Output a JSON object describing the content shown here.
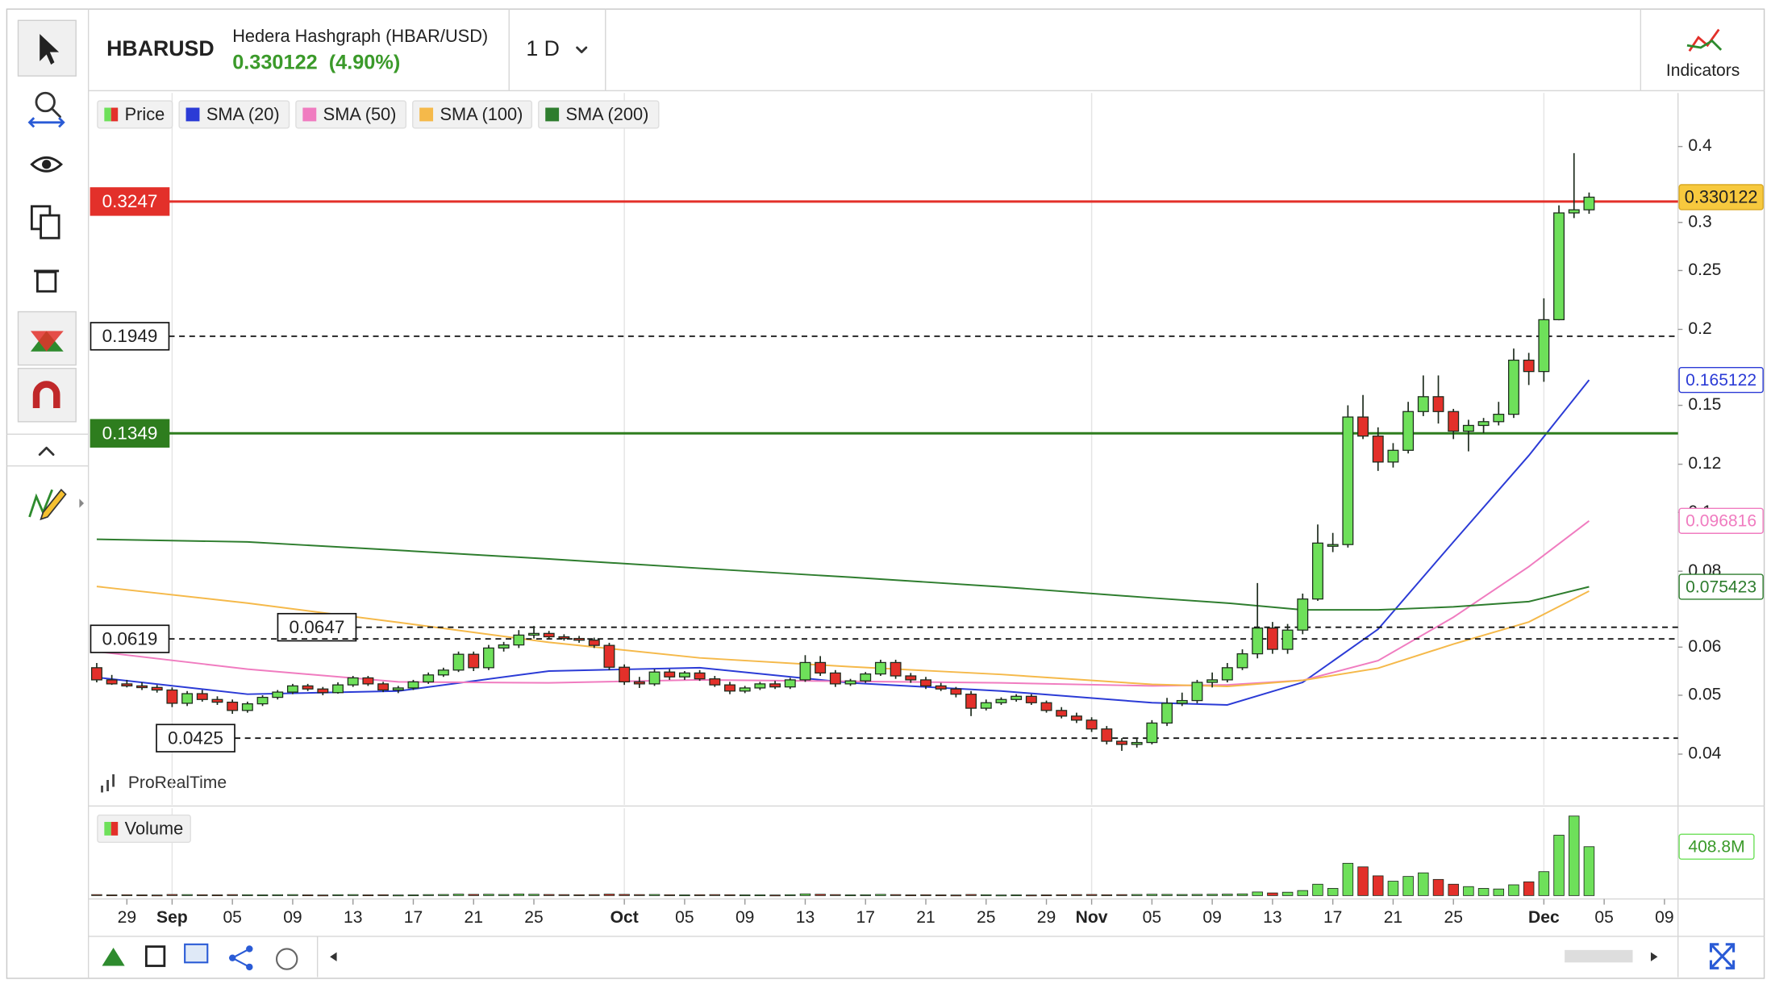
{
  "header": {
    "symbol": "HBARUSD",
    "name": "Hedera Hashgraph (HBAR/USD)",
    "change": "(4.90%)",
    "timeframe": "1 D",
    "indicators_button": "Indicators"
  },
  "watermark": "ProRealTime",
  "chart_data": {
    "type": "candlestick",
    "yscale": "log",
    "ylim": [
      0.033,
      0.49
    ],
    "yticks": [
      0.04,
      0.05,
      0.06,
      0.08,
      0.1,
      0.12,
      0.15,
      0.2,
      0.25,
      0.3,
      0.4
    ],
    "xlim": [
      -0.4,
      104.9
    ],
    "xticks": [
      {
        "value": 2,
        "label": "29"
      },
      {
        "value": 5,
        "label": "Sep"
      },
      {
        "value": 9,
        "label": "05"
      },
      {
        "value": 13,
        "label": "09"
      },
      {
        "value": 17,
        "label": "13"
      },
      {
        "value": 21,
        "label": "17"
      },
      {
        "value": 25,
        "label": "21"
      },
      {
        "value": 29,
        "label": "25"
      },
      {
        "value": 35,
        "label": "Oct"
      },
      {
        "value": 39,
        "label": "05"
      },
      {
        "value": 43,
        "label": "09"
      },
      {
        "value": 47,
        "label": "13"
      },
      {
        "value": 51,
        "label": "17"
      },
      {
        "value": 55,
        "label": "21"
      },
      {
        "value": 59,
        "label": "25"
      },
      {
        "value": 63,
        "label": "29"
      },
      {
        "value": 66,
        "label": "Nov"
      },
      {
        "value": 70,
        "label": "05"
      },
      {
        "value": 74,
        "label": "09"
      },
      {
        "value": 78,
        "label": "13"
      },
      {
        "value": 82,
        "label": "17"
      },
      {
        "value": 86,
        "label": "21"
      },
      {
        "value": 90,
        "label": "25"
      },
      {
        "value": 96,
        "label": "Dec"
      },
      {
        "value": 100,
        "label": "05"
      },
      {
        "value": 104,
        "label": "09"
      }
    ],
    "candles": {
      "name": "Price",
      "up_color": "#6ee05a",
      "down_color": "#e3302a",
      "open": [
        0.0555,
        0.053,
        0.0522,
        0.0518,
        0.0515,
        0.051,
        0.0485,
        0.0503,
        0.0492,
        0.0487,
        0.0472,
        0.0484,
        0.0496,
        0.0506,
        0.0518,
        0.0512,
        0.0505,
        0.052,
        0.0534,
        0.0522,
        0.051,
        0.0514,
        0.0526,
        0.054,
        0.055,
        0.0584,
        0.0555,
        0.0598,
        0.0605,
        0.0628,
        0.0632,
        0.0624,
        0.062,
        0.0616,
        0.0604,
        0.0556,
        0.0526,
        0.0522,
        0.0546,
        0.0536,
        0.0544,
        0.0532,
        0.052,
        0.0508,
        0.0514,
        0.0522,
        0.0516,
        0.053,
        0.0566,
        0.0544,
        0.0522,
        0.0528,
        0.0542,
        0.0566,
        0.0538,
        0.053,
        0.0518,
        0.0512,
        0.0502,
        0.0476,
        0.0486,
        0.0492,
        0.0498,
        0.0486,
        0.0472,
        0.0462,
        0.0455,
        0.044,
        0.042,
        0.0415,
        0.0418,
        0.045,
        0.0485,
        0.049,
        0.0525,
        0.053,
        0.0555,
        0.0585,
        0.0645,
        0.0595,
        0.064,
        0.072,
        0.088,
        0.0885,
        0.1435,
        0.1335,
        0.121,
        0.1265,
        0.1465,
        0.155,
        0.1465,
        0.136,
        0.139,
        0.141,
        0.145,
        0.178,
        0.1705,
        0.2075,
        0.311,
        0.3147
      ],
      "high": [
        0.0565,
        0.054,
        0.053,
        0.0525,
        0.052,
        0.0515,
        0.0508,
        0.051,
        0.0498,
        0.0492,
        0.0488,
        0.05,
        0.051,
        0.0522,
        0.0522,
        0.0516,
        0.0525,
        0.0538,
        0.0538,
        0.0526,
        0.0518,
        0.053,
        0.0545,
        0.0555,
        0.059,
        0.059,
        0.0605,
        0.0612,
        0.064,
        0.065,
        0.0638,
        0.063,
        0.0626,
        0.0622,
        0.061,
        0.0562,
        0.0536,
        0.0552,
        0.0552,
        0.0548,
        0.055,
        0.0538,
        0.0526,
        0.0518,
        0.0526,
        0.0528,
        0.0534,
        0.0582,
        0.058,
        0.055,
        0.0532,
        0.0546,
        0.0572,
        0.0572,
        0.0544,
        0.0536,
        0.0524,
        0.0516,
        0.0508,
        0.0492,
        0.0496,
        0.0502,
        0.0502,
        0.049,
        0.0478,
        0.0468,
        0.046,
        0.0445,
        0.0425,
        0.0425,
        0.0455,
        0.0495,
        0.0505,
        0.053,
        0.0545,
        0.0565,
        0.0595,
        0.0765,
        0.066,
        0.0655,
        0.0735,
        0.0955,
        0.0925,
        0.15,
        0.156,
        0.138,
        0.13,
        0.152,
        0.168,
        0.168,
        0.148,
        0.142,
        0.143,
        0.152,
        0.186,
        0.183,
        0.225,
        0.32,
        0.39,
        0.336
      ],
      "low": [
        0.0525,
        0.052,
        0.0515,
        0.051,
        0.0505,
        0.0478,
        0.048,
        0.0488,
        0.0482,
        0.0466,
        0.0468,
        0.048,
        0.0492,
        0.0502,
        0.0508,
        0.05,
        0.0503,
        0.0516,
        0.0518,
        0.0506,
        0.0504,
        0.051,
        0.0522,
        0.0536,
        0.0546,
        0.0548,
        0.055,
        0.059,
        0.0598,
        0.062,
        0.0618,
        0.0615,
        0.061,
        0.0598,
        0.055,
        0.052,
        0.0514,
        0.0518,
        0.053,
        0.053,
        0.0528,
        0.0516,
        0.0502,
        0.0504,
        0.051,
        0.0512,
        0.0512,
        0.0526,
        0.0538,
        0.0516,
        0.0518,
        0.0524,
        0.0538,
        0.0532,
        0.0524,
        0.0512,
        0.0508,
        0.0496,
        0.0462,
        0.0472,
        0.0482,
        0.0488,
        0.0482,
        0.0468,
        0.0458,
        0.045,
        0.0435,
        0.0415,
        0.0405,
        0.041,
        0.0415,
        0.0445,
        0.048,
        0.0485,
        0.0515,
        0.0525,
        0.055,
        0.0575,
        0.0585,
        0.0585,
        0.063,
        0.0715,
        0.086,
        0.0875,
        0.132,
        0.117,
        0.1185,
        0.125,
        0.144,
        0.14,
        0.132,
        0.126,
        0.135,
        0.139,
        0.143,
        0.162,
        0.164,
        0.207,
        0.305,
        0.31
      ],
      "close": [
        0.053,
        0.0522,
        0.0518,
        0.0515,
        0.051,
        0.0485,
        0.0503,
        0.0492,
        0.0487,
        0.0472,
        0.0484,
        0.0496,
        0.0506,
        0.0518,
        0.0512,
        0.0505,
        0.052,
        0.0534,
        0.0522,
        0.051,
        0.0514,
        0.0526,
        0.054,
        0.055,
        0.0584,
        0.0555,
        0.0598,
        0.0605,
        0.0628,
        0.0632,
        0.0624,
        0.062,
        0.0616,
        0.0604,
        0.0556,
        0.0526,
        0.0522,
        0.0546,
        0.0536,
        0.0544,
        0.0532,
        0.052,
        0.0508,
        0.0514,
        0.0522,
        0.0516,
        0.053,
        0.0566,
        0.0544,
        0.0522,
        0.0528,
        0.0542,
        0.0566,
        0.0538,
        0.053,
        0.0518,
        0.0512,
        0.0502,
        0.0476,
        0.0486,
        0.0492,
        0.0498,
        0.0486,
        0.0472,
        0.0462,
        0.0455,
        0.044,
        0.042,
        0.0415,
        0.0418,
        0.045,
        0.0485,
        0.049,
        0.0525,
        0.053,
        0.0555,
        0.0585,
        0.0645,
        0.0595,
        0.064,
        0.072,
        0.089,
        0.0885,
        0.1435,
        0.1335,
        0.121,
        0.1265,
        0.1465,
        0.155,
        0.1465,
        0.136,
        0.139,
        0.141,
        0.145,
        0.178,
        0.1705,
        0.2075,
        0.311,
        0.3147,
        0.330122
      ]
    },
    "sma": [
      {
        "name": "SMA (20)",
        "color": "#2b3bd6",
        "show_last": true,
        "x": [
          0,
          10,
          20,
          30,
          40,
          50,
          60,
          70,
          75,
          80,
          85,
          90,
          95,
          99
        ],
        "values": [
          0.0535,
          0.0502,
          0.0508,
          0.0548,
          0.0555,
          0.0524,
          0.0508,
          0.0486,
          0.0482,
          0.0525,
          0.0642,
          0.0894,
          0.124,
          0.165122
        ]
      },
      {
        "name": "SMA (50)",
        "color": "#f07cc0",
        "show_last": true,
        "x": [
          0,
          10,
          20,
          30,
          40,
          50,
          60,
          70,
          75,
          80,
          85,
          90,
          95,
          99
        ],
        "values": [
          0.059,
          0.0552,
          0.0526,
          0.0524,
          0.053,
          0.0527,
          0.0524,
          0.0518,
          0.052,
          0.0529,
          0.057,
          0.0672,
          0.0814,
          0.096816
        ]
      },
      {
        "name": "SMA (100)",
        "color": "#f5b94a",
        "show_last": false,
        "x": [
          0,
          10,
          20,
          30,
          40,
          50,
          60,
          70,
          75,
          80,
          85,
          90,
          95,
          99
        ],
        "values": [
          0.0755,
          0.0709,
          0.0659,
          0.0611,
          0.0576,
          0.0557,
          0.0541,
          0.0521,
          0.0517,
          0.0529,
          0.0554,
          0.0607,
          0.066,
          0.0742
        ]
      },
      {
        "name": "SMA (200)",
        "color": "#2e7d2e",
        "show_last": true,
        "x": [
          0,
          10,
          20,
          30,
          40,
          50,
          60,
          70,
          75,
          80,
          85,
          90,
          95,
          99
        ],
        "values": [
          0.0903,
          0.0894,
          0.0866,
          0.0838,
          0.0809,
          0.0782,
          0.0754,
          0.0723,
          0.0709,
          0.0691,
          0.0691,
          0.0699,
          0.0713,
          0.075423
        ]
      }
    ],
    "levels": [
      {
        "value": 0.3247,
        "color": "#e3302a",
        "style": "solid"
      },
      {
        "value": 0.1949,
        "color": "#111111",
        "style": "dashed"
      },
      {
        "value": 0.1349,
        "color": "#2e7d1e",
        "style": "solid"
      },
      {
        "value": 0.0647,
        "color": "#111111",
        "style": "dashed"
      },
      {
        "value": 0.0619,
        "color": "#111111",
        "style": "dashed"
      },
      {
        "value": 0.0425,
        "color": "#111111",
        "style": "dashed"
      }
    ],
    "volume": {
      "name": "Volume",
      "ylim": [
        0,
        730
      ],
      "last_label": "408.8M",
      "values": [
        8,
        6,
        7,
        6,
        5,
        9,
        8,
        7,
        6,
        8,
        7,
        6,
        7,
        8,
        6,
        5,
        7,
        8,
        6,
        7,
        5,
        6,
        8,
        9,
        12,
        10,
        11,
        9,
        13,
        11,
        9,
        8,
        7,
        8,
        12,
        10,
        8,
        9,
        7,
        6,
        7,
        8,
        7,
        6,
        6,
        5,
        7,
        14,
        11,
        8,
        6,
        7,
        10,
        8,
        6,
        7,
        6,
        5,
        9,
        7,
        5,
        6,
        5,
        6,
        7,
        8,
        9,
        7,
        8,
        9,
        11,
        10,
        9,
        10,
        11,
        12,
        14,
        30,
        22,
        28,
        42,
        95,
        60,
        270,
        240,
        165,
        120,
        160,
        190,
        135,
        95,
        75,
        60,
        55,
        90,
        115,
        200,
        505,
        665,
        408.8
      ]
    }
  }
}
